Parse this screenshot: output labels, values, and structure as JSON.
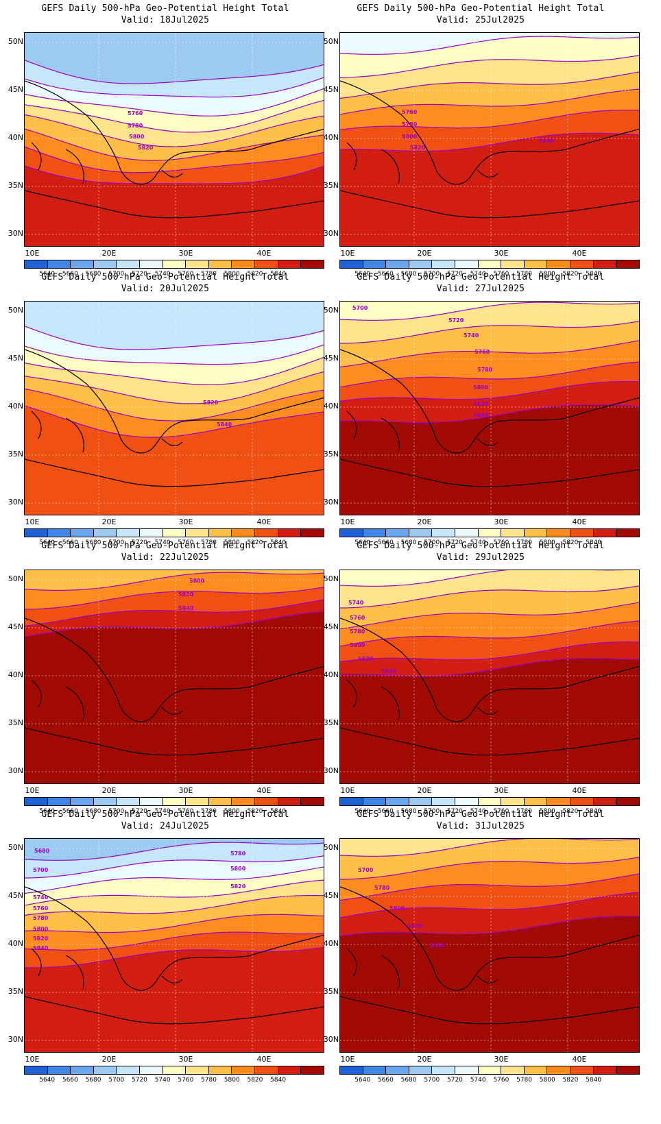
{
  "figure": {
    "title": "GEFS Daily 500-hPa Geo-Potential Height Total",
    "valid_prefix": "Valid:",
    "lon_ticks": [
      "10E",
      "20E",
      "30E",
      "40E"
    ],
    "lat_ticks": [
      "50N",
      "45N",
      "40N",
      "35N",
      "30N"
    ],
    "colorbar_levels": [
      "5640",
      "5660",
      "5680",
      "5700",
      "5720",
      "5740",
      "5760",
      "5780",
      "5800",
      "5820",
      "5840"
    ],
    "colorbar_colors": [
      "#1e63d6",
      "#3f86e8",
      "#6aa6ef",
      "#9ccaf3",
      "#c6e6f9",
      "#eafaff",
      "#ffffc4",
      "#ffe48c",
      "#ffc04a",
      "#ff8c1e",
      "#f05012",
      "#d21e10",
      "#a00a00"
    ],
    "contour_color": "#9a00c8",
    "coastline_color": "#000000"
  },
  "panels": [
    {
      "valid": "18Jul2025",
      "labels": [
        "5760",
        "5780",
        "5800",
        "5820"
      ]
    },
    {
      "valid": "25Jul2025",
      "labels": [
        "5760",
        "5780",
        "5800",
        "5820",
        "5840"
      ]
    },
    {
      "valid": "20Jul2025",
      "labels": [
        "5820",
        "5840"
      ]
    },
    {
      "valid": "27Jul2025",
      "labels": [
        "5700",
        "5720",
        "5740",
        "5760",
        "5780",
        "5800",
        "5820",
        "5840"
      ]
    },
    {
      "valid": "22Jul2025",
      "labels": [
        "5800",
        "5820",
        "5840"
      ]
    },
    {
      "valid": "29Jul2025",
      "labels": [
        "5740",
        "5760",
        "5780",
        "5800",
        "5820",
        "5840"
      ]
    },
    {
      "valid": "24Jul2025",
      "labels": [
        "5680",
        "5700",
        "5740",
        "5760",
        "5780",
        "5800",
        "5820",
        "5840",
        "5780",
        "5800",
        "5820"
      ]
    },
    {
      "valid": "31Jul2025",
      "labels": [
        "5700",
        "5780",
        "5800",
        "5820",
        "5840"
      ]
    }
  ]
}
